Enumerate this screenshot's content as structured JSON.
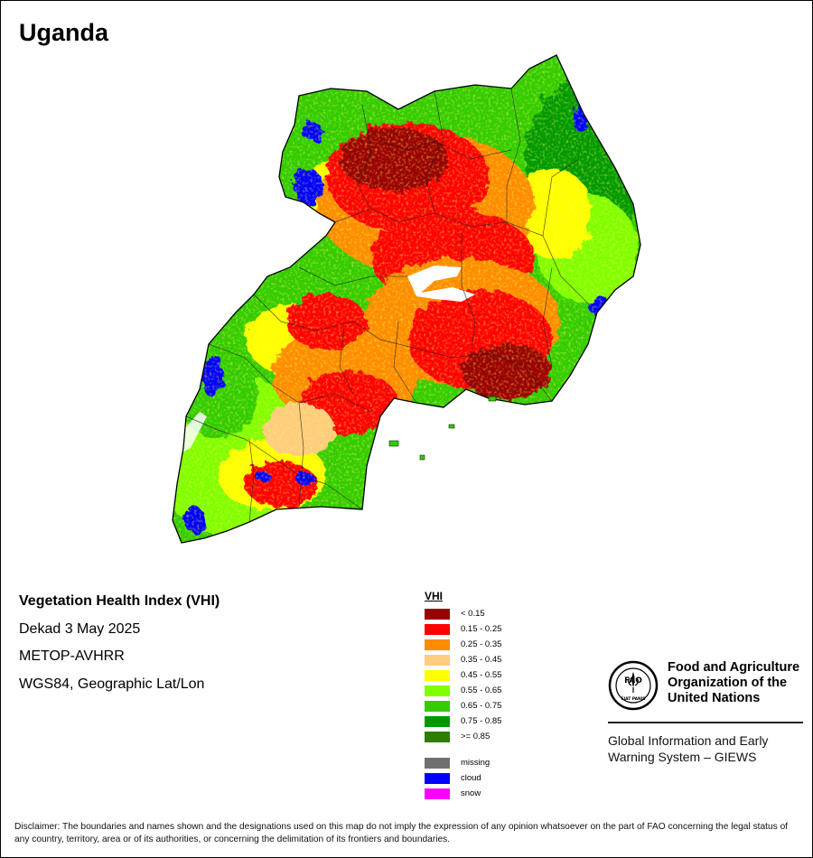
{
  "map_title": "Uganda",
  "info": {
    "product": "Vegetation Health Index (VHI)",
    "period": "Dekad 3 May 2025",
    "sensor": "METOP-AVHRR",
    "projection": "WGS84, Geographic Lat/Lon"
  },
  "legend": {
    "title": "VHI",
    "classes": [
      {
        "label": "< 0.15",
        "color": "#990000"
      },
      {
        "label": "0.15 - 0.25",
        "color": "#ff0000"
      },
      {
        "label": "0.25 - 0.35",
        "color": "#ff8c00"
      },
      {
        "label": "0.35 - 0.45",
        "color": "#ffcc80"
      },
      {
        "label": "0.45 - 0.55",
        "color": "#ffff00"
      },
      {
        "label": "0.55 - 0.65",
        "color": "#80ff00"
      },
      {
        "label": "0.65 - 0.75",
        "color": "#33cc00"
      },
      {
        "label": "0.75 - 0.85",
        "color": "#009900"
      },
      {
        "label": ">= 0.85",
        "color": "#2e7d00"
      }
    ],
    "other": [
      {
        "label": "missing",
        "color": "#707070"
      },
      {
        "label": "cloud",
        "color": "#0000ff"
      },
      {
        "label": "snow",
        "color": "#ff00ff"
      }
    ]
  },
  "organization": {
    "logo_text": "FAO",
    "logo_motto": "FIAT PANIS",
    "name_line1": "Food and Agriculture",
    "name_line2": "Organization of the",
    "name_line3": "United Nations",
    "system_line1": "Global Information and Early",
    "system_line2": "Warning System – GIEWS"
  },
  "disclaimer": "Disclaimer: The boundaries and names shown and the designations used on this map do not imply the expression of any opinion whatsoever on the part of FAO concerning the legal status of any country, territory, area or of its authorities, or concerning the delimitation of its frontiers and boundaries."
}
